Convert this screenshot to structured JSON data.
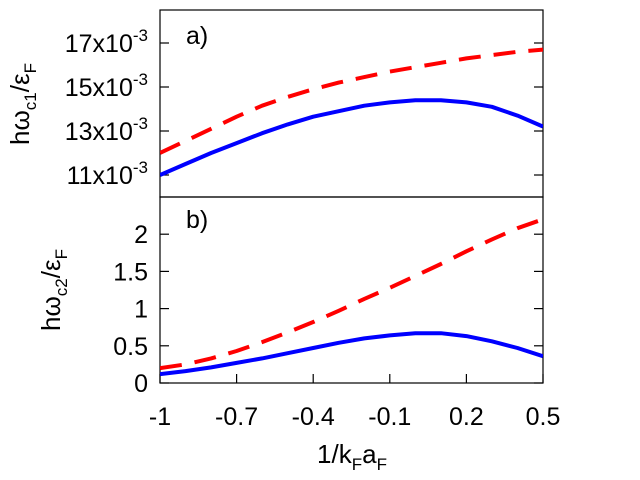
{
  "colors": {
    "series_a": "#0000ff",
    "series_b": "#ff0000",
    "axis": "#000000"
  },
  "chart_data": [
    {
      "type": "line",
      "panel_label": "a)",
      "ylabel": {
        "main": "hω",
        "sub1": "c1",
        "mid": "/ε",
        "sub2": "F"
      },
      "xlim": [
        -1,
        0.5
      ],
      "ylim": [
        0.01,
        0.0185
      ],
      "ytick_values": [
        0.011,
        0.013,
        0.015,
        0.017
      ],
      "ytick_labels": [
        {
          "mantissa": "11x10",
          "exp": "-3"
        },
        {
          "mantissa": "13x10",
          "exp": "-3"
        },
        {
          "mantissa": "15x10",
          "exp": "-3"
        },
        {
          "mantissa": "17x10",
          "exp": "-3"
        }
      ],
      "series": [
        {
          "name": "solid",
          "style": "solid",
          "color": "#0000ff",
          "x": [
            -1,
            -0.9,
            -0.8,
            -0.7,
            -0.6,
            -0.5,
            -0.4,
            -0.3,
            -0.2,
            -0.1,
            0,
            0.1,
            0.2,
            0.3,
            0.4,
            0.5
          ],
          "y": [
            0.011,
            0.0115,
            0.012,
            0.01245,
            0.0129,
            0.0133,
            0.01365,
            0.0139,
            0.01415,
            0.0143,
            0.0144,
            0.0144,
            0.0143,
            0.0141,
            0.0137,
            0.0132
          ]
        },
        {
          "name": "dashed",
          "style": "dashed",
          "color": "#ff0000",
          "x": [
            -1,
            -0.9,
            -0.8,
            -0.7,
            -0.6,
            -0.5,
            -0.4,
            -0.3,
            -0.2,
            -0.1,
            0,
            0.1,
            0.2,
            0.3,
            0.4,
            0.5
          ],
          "y": [
            0.012,
            0.01255,
            0.0131,
            0.01365,
            0.01415,
            0.01455,
            0.0149,
            0.0152,
            0.01545,
            0.0157,
            0.0159,
            0.0161,
            0.0163,
            0.01645,
            0.0166,
            0.0167
          ]
        }
      ]
    },
    {
      "type": "line",
      "panel_label": "b)",
      "ylabel": {
        "main": "hω",
        "sub1": "c2",
        "mid": "/ε",
        "sub2": "F"
      },
      "xlim": [
        -1,
        0.5
      ],
      "ylim": [
        0,
        2.5
      ],
      "ytick_values": [
        0,
        0.5,
        1,
        1.5,
        2
      ],
      "ytick_labels": [
        "0",
        "0.5",
        "1",
        "1.5",
        "2"
      ],
      "xtick_values": [
        -1,
        -0.7,
        -0.4,
        -0.1,
        0.2,
        0.5
      ],
      "xtick_labels": [
        "-1",
        "-0.7",
        "-0.4",
        "-0.1",
        "0.2",
        "0.5"
      ],
      "xlabel": {
        "pre": "1/k",
        "sub1": "F",
        "mid": "a",
        "sub2": "F"
      },
      "series": [
        {
          "name": "solid",
          "style": "solid",
          "color": "#0000ff",
          "x": [
            -1,
            -0.9,
            -0.8,
            -0.7,
            -0.6,
            -0.5,
            -0.4,
            -0.3,
            -0.2,
            -0.1,
            0,
            0.1,
            0.2,
            0.3,
            0.4,
            0.5
          ],
          "y": [
            0.12,
            0.16,
            0.21,
            0.27,
            0.33,
            0.4,
            0.47,
            0.54,
            0.6,
            0.64,
            0.67,
            0.67,
            0.63,
            0.56,
            0.47,
            0.36
          ]
        },
        {
          "name": "dashed",
          "style": "dashed",
          "color": "#ff0000",
          "x": [
            -1,
            -0.9,
            -0.8,
            -0.7,
            -0.6,
            -0.5,
            -0.4,
            -0.3,
            -0.2,
            -0.1,
            0,
            0.1,
            0.2,
            0.3,
            0.4,
            0.5
          ],
          "y": [
            0.2,
            0.25,
            0.33,
            0.43,
            0.55,
            0.68,
            0.82,
            0.97,
            1.13,
            1.28,
            1.44,
            1.6,
            1.77,
            1.93,
            2.08,
            2.2
          ]
        }
      ]
    }
  ]
}
